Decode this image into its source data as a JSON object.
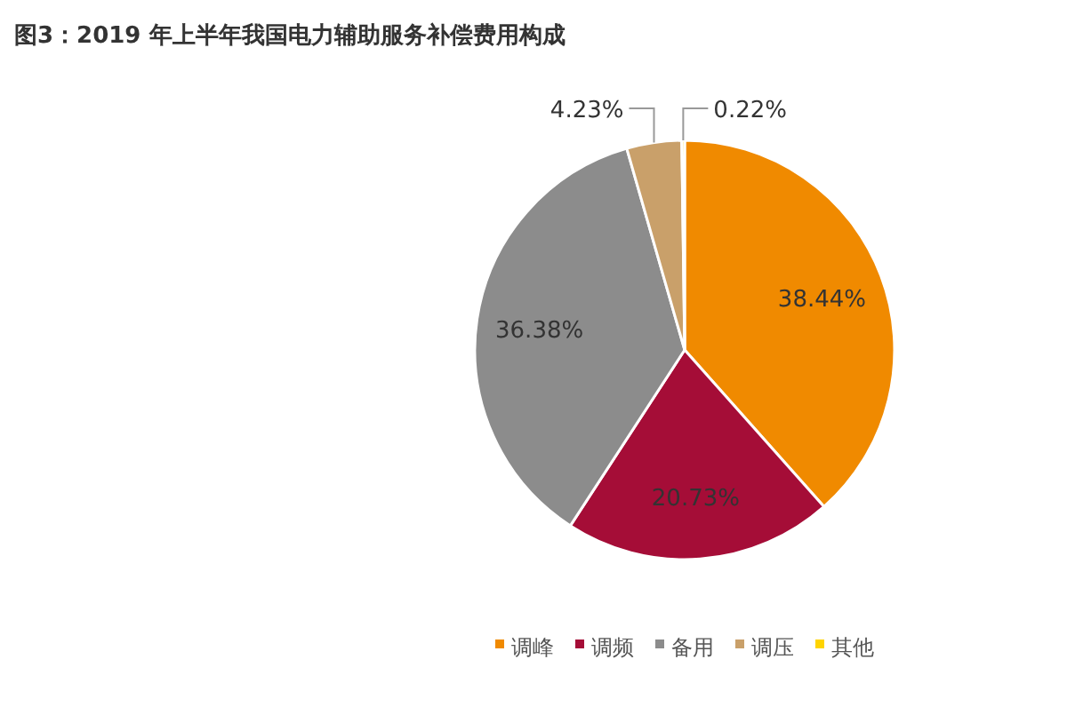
{
  "chart_data": {
    "type": "pie",
    "title": "图3：2019 年上半年我国电力辅助服务补偿费用构成",
    "categories": [
      "调峰",
      "调频",
      "备用",
      "调压",
      "其他"
    ],
    "values": [
      38.44,
      20.73,
      36.38,
      4.23,
      0.22
    ],
    "colors": [
      "#f08a00",
      "#a50d37",
      "#8c8c8c",
      "#c9a06a",
      "#ffd400"
    ],
    "value_labels": [
      "38.44%",
      "20.73%",
      "36.38%",
      "4.23%",
      "0.22%"
    ],
    "legend": "bottom"
  }
}
